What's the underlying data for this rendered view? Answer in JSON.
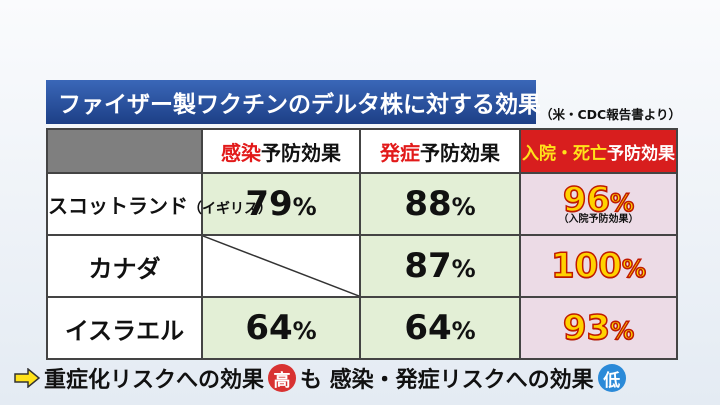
{
  "title": "ファイザー製ワクチンのデルタ株に対する効果",
  "source": "（米・CDC報告書より）",
  "headers": {
    "infection": {
      "red": "感染",
      "rest": "予防効果"
    },
    "onset": {
      "red": "発症",
      "rest": "予防効果"
    },
    "death": {
      "yellow": "入院・死亡",
      "rest": "予防効果"
    }
  },
  "rows": [
    {
      "label": "スコットランド",
      "label_small": "（イギリス）",
      "infection": "79",
      "onset": "88",
      "death": "96",
      "death_note": "（入院予防効果）"
    },
    {
      "label": "カナダ",
      "label_small": "",
      "infection": "",
      "onset": "87",
      "death": "100",
      "death_note": ""
    },
    {
      "label": "イスラエル",
      "label_small": "",
      "infection": "64",
      "onset": "64",
      "death": "93",
      "death_note": ""
    }
  ],
  "pct": "%",
  "bottom": {
    "part1": "重症化リスクへの効果",
    "high": "高",
    "part2": "も 感染・発症リスクへの効果",
    "low": "低"
  },
  "colors": {
    "title_bg": "#1d3f86",
    "green_cell": "#e3efd6",
    "pink_cell": "#ecdbe6",
    "header_red": "#d81e1e",
    "accent_yellow": "#ffd200"
  },
  "icons": {
    "arrow": "right-arrow-icon"
  }
}
